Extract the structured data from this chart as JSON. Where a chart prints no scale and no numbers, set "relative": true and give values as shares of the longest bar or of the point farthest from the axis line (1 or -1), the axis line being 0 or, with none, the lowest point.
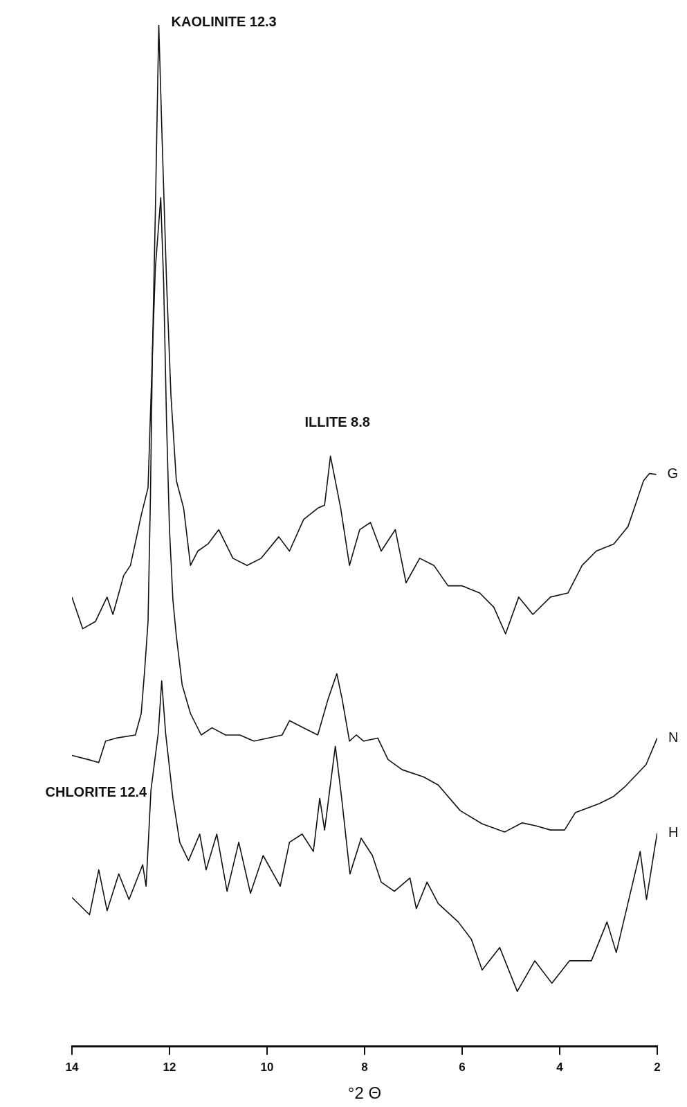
{
  "chart_data": {
    "type": "line",
    "relative": true,
    "xlabel": "°2 Θ",
    "xlim": [
      14,
      2
    ],
    "xticks": [
      14,
      12,
      10,
      8,
      6,
      4,
      2
    ],
    "grid": false,
    "legend": false,
    "marker": "none",
    "line_style": "solid",
    "annotations": [
      {
        "text": "KAOLINITE 12.3",
        "x": 12.22,
        "y": 1
      },
      {
        "text": "ILLITE 8.8",
        "x": 8.7,
        "y": 0.578
      },
      {
        "text": "CHLORITE 12.4",
        "x": 12.38,
        "y": 0.251
      }
    ],
    "series": [
      {
        "name": "G",
        "color": "#111111",
        "x": [
          14.0,
          13.78,
          13.52,
          13.28,
          13.16,
          12.94,
          12.8,
          12.58,
          12.44,
          12.35,
          12.29,
          12.22,
          12.15,
          12.06,
          11.97,
          11.86,
          11.71,
          11.57,
          11.42,
          11.21,
          10.99,
          10.7,
          10.41,
          10.12,
          9.76,
          9.54,
          9.25,
          8.96,
          8.82,
          8.7,
          8.49,
          8.31,
          8.1,
          7.88,
          7.66,
          7.37,
          7.15,
          6.87,
          6.58,
          6.29,
          6.0,
          5.64,
          5.35,
          5.11,
          4.84,
          4.55,
          4.19,
          3.83,
          3.54,
          3.25,
          2.89,
          2.6,
          2.45,
          2.28,
          2.16,
          2.02
        ],
        "values": [
          0.44,
          0.409,
          0.416,
          0.44,
          0.423,
          0.461,
          0.471,
          0.52,
          0.547,
          0.679,
          0.817,
          1.0,
          0.886,
          0.748,
          0.637,
          0.554,
          0.527,
          0.471,
          0.485,
          0.492,
          0.506,
          0.478,
          0.471,
          0.478,
          0.499,
          0.485,
          0.516,
          0.527,
          0.53,
          0.578,
          0.527,
          0.471,
          0.506,
          0.513,
          0.485,
          0.506,
          0.454,
          0.478,
          0.471,
          0.451,
          0.451,
          0.444,
          0.43,
          0.404,
          0.44,
          0.423,
          0.44,
          0.444,
          0.471,
          0.485,
          0.492,
          0.509,
          0.53,
          0.554,
          0.561,
          0.56
        ]
      },
      {
        "name": "N",
        "color": "#111111",
        "x": [
          14.0,
          13.67,
          13.45,
          13.31,
          13.09,
          12.7,
          12.58,
          12.51,
          12.44,
          12.39,
          12.35,
          12.29,
          12.18,
          12.12,
          12.06,
          12.0,
          11.93,
          11.86,
          11.74,
          11.57,
          11.35,
          11.13,
          10.85,
          10.56,
          10.27,
          9.98,
          9.69,
          9.54,
          9.25,
          8.96,
          8.75,
          8.57,
          8.46,
          8.31,
          8.17,
          8.02,
          7.73,
          7.52,
          7.23,
          6.79,
          6.49,
          6.04,
          5.59,
          5.13,
          4.77,
          4.48,
          4.19,
          3.9,
          3.68,
          3.46,
          3.18,
          2.89,
          2.67,
          2.45,
          2.23,
          2.0
        ],
        "values": [
          0.285,
          0.281,
          0.278,
          0.299,
          0.302,
          0.305,
          0.326,
          0.368,
          0.416,
          0.54,
          0.679,
          0.762,
          0.831,
          0.748,
          0.61,
          0.506,
          0.437,
          0.402,
          0.354,
          0.326,
          0.305,
          0.312,
          0.305,
          0.305,
          0.299,
          0.302,
          0.305,
          0.319,
          0.312,
          0.305,
          0.34,
          0.365,
          0.34,
          0.299,
          0.305,
          0.299,
          0.302,
          0.281,
          0.271,
          0.264,
          0.256,
          0.231,
          0.218,
          0.21,
          0.219,
          0.216,
          0.212,
          0.212,
          0.229,
          0.233,
          0.238,
          0.245,
          0.254,
          0.265,
          0.276,
          0.302
        ]
      },
      {
        "name": "H",
        "color": "#111111",
        "x": [
          14.0,
          13.64,
          13.45,
          13.28,
          13.04,
          12.83,
          12.55,
          12.48,
          12.38,
          12.23,
          12.16,
          12.08,
          11.93,
          11.79,
          11.61,
          11.38,
          11.25,
          11.03,
          10.82,
          10.58,
          10.34,
          10.08,
          9.73,
          9.54,
          9.28,
          9.05,
          8.92,
          8.82,
          8.6,
          8.47,
          8.3,
          8.07,
          7.84,
          7.66,
          7.39,
          7.07,
          6.94,
          6.72,
          6.49,
          6.08,
          5.81,
          5.59,
          5.23,
          4.87,
          4.51,
          4.16,
          3.8,
          3.35,
          3.03,
          2.84,
          2.35,
          2.22,
          2.05,
          2.0
        ],
        "values": [
          0.146,
          0.129,
          0.173,
          0.133,
          0.169,
          0.144,
          0.178,
          0.157,
          0.251,
          0.307,
          0.358,
          0.307,
          0.243,
          0.2,
          0.182,
          0.208,
          0.173,
          0.208,
          0.152,
          0.2,
          0.15,
          0.187,
          0.157,
          0.2,
          0.208,
          0.191,
          0.243,
          0.212,
          0.294,
          0.243,
          0.169,
          0.204,
          0.187,
          0.161,
          0.152,
          0.165,
          0.135,
          0.161,
          0.14,
          0.122,
          0.105,
          0.075,
          0.097,
          0.054,
          0.084,
          0.062,
          0.084,
          0.084,
          0.122,
          0.092,
          0.191,
          0.144,
          0.195,
          0.209
        ]
      }
    ]
  }
}
